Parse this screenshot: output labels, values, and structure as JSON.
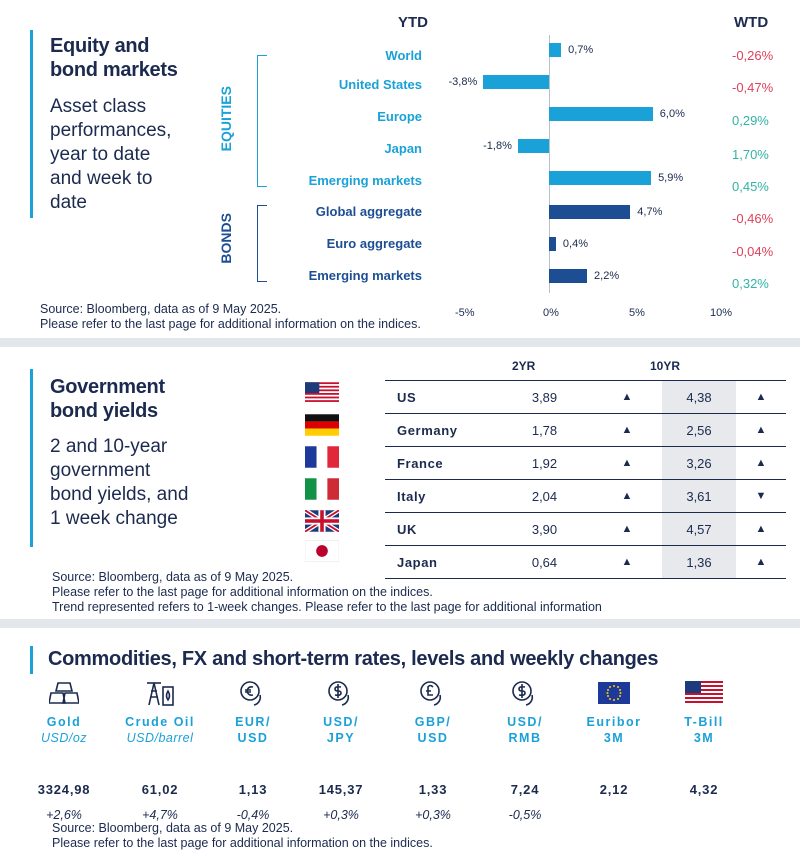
{
  "equity_panel": {
    "title_line1": "Equity and",
    "title_line2": "bond markets",
    "subtitle_lines": [
      "Asset class",
      "performances,",
      "year to date",
      "and week to",
      "date"
    ],
    "header_ytd": "YTD",
    "header_wtd": "WTD",
    "group_equities": "EQUITIES",
    "group_bonds": "BONDS",
    "source_line1": "Source: Bloomberg, data as of 9 May 2025.",
    "source_line2": "Please refer to the last page for additional information on the indices."
  },
  "chart_data": {
    "type": "bar",
    "orientation": "horizontal",
    "categories": [
      "World",
      "United States",
      "Europe",
      "Japan",
      "Emerging  markets",
      "Global aggregate",
      "Euro aggregate",
      "Emerging  markets"
    ],
    "groups": [
      "equities",
      "equities",
      "equities",
      "equities",
      "equities",
      "bonds",
      "bonds",
      "bonds"
    ],
    "values": [
      0.7,
      -3.8,
      6.0,
      -1.8,
      5.9,
      4.7,
      0.4,
      2.2
    ],
    "value_labels": [
      "0,7%",
      "-3,8%",
      "6,0%",
      "-1,8%",
      "5,9%",
      "4,7%",
      "0,4%",
      "2,2%"
    ],
    "wtd": [
      "-0,26%",
      "-0,47%",
      "0,29%",
      "1,70%",
      "0,45%",
      "-0,46%",
      "-0,04%",
      "0,32%"
    ],
    "wtd_values": [
      -0.26,
      -0.47,
      0.29,
      1.7,
      0.45,
      -0.46,
      -0.04,
      0.32
    ],
    "xlim": [
      -5,
      10
    ],
    "xticks": [
      "-5%",
      "0%",
      "5%",
      "10%"
    ],
    "xtick_values": [
      -5,
      0,
      5,
      10
    ],
    "colors": {
      "equities": "#1aa1d8",
      "bonds": "#1d4e94",
      "positive": "#32b3a5",
      "negative": "#e0405a"
    }
  },
  "yields_panel": {
    "title_line1": "Government",
    "title_line2": "bond yields",
    "subtitle_lines": [
      "2 and 10-year",
      "government",
      "bond yields, and",
      "1 week change"
    ],
    "col_2yr": "2YR",
    "col_10yr": "10YR",
    "rows": [
      {
        "country": "US",
        "y2": "3,89",
        "t2": "up",
        "y10": "4,38",
        "t10": "up",
        "flag": "us-flag"
      },
      {
        "country": "Germany",
        "y2": "1,78",
        "t2": "up",
        "y10": "2,56",
        "t10": "up",
        "flag": "germany-flag"
      },
      {
        "country": "France",
        "y2": "1,92",
        "t2": "up",
        "y10": "3,26",
        "t10": "up",
        "flag": "france-flag"
      },
      {
        "country": "Italy",
        "y2": "2,04",
        "t2": "up",
        "y10": "3,61",
        "t10": "down",
        "flag": "italy-flag"
      },
      {
        "country": "UK",
        "y2": "3,90",
        "t2": "up",
        "y10": "4,57",
        "t10": "up",
        "flag": "uk-flag"
      },
      {
        "country": "Japan",
        "y2": "0,64",
        "t2": "up",
        "y10": "1,36",
        "t10": "up",
        "flag": "japan-flag"
      }
    ],
    "source_line1": "Source: Bloomberg, data as of 9 May 2025.",
    "source_line2": "Please refer to the last page for additional information on the indices.",
    "source_line3": "Trend represented refers to 1-week changes. Please refer to the last page for additional information"
  },
  "commodities_panel": {
    "title": "Commodities, FX and short-term rates, levels and weekly changes",
    "items": [
      {
        "name": "Gold",
        "unit": "USD/oz",
        "level": "3324,98",
        "change": "+2,6%",
        "icon": "gold-bars-icon"
      },
      {
        "name": "Crude Oil",
        "unit": "USD/barrel",
        "level": "61,02",
        "change": "+4,7%",
        "icon": "oil-derrick-icon"
      },
      {
        "name": "EUR/",
        "unit": "USD",
        "level": "1,13",
        "change": "-0,4%",
        "icon": "euro-exchange-icon"
      },
      {
        "name": "USD/",
        "unit": "JPY",
        "level": "145,37",
        "change": "+0,3%",
        "icon": "dollar-exchange-icon"
      },
      {
        "name": "GBP/",
        "unit": "USD",
        "level": "1,33",
        "change": "+0,3%",
        "icon": "pound-exchange-icon"
      },
      {
        "name": "USD/",
        "unit": "RMB",
        "level": "7,24",
        "change": "-0,5%",
        "icon": "dollar-exchange-icon"
      },
      {
        "name": "Euribor",
        "unit": "3M",
        "level": "2,12",
        "change": "",
        "icon": "eu-flag-icon"
      },
      {
        "name": "T-Bill",
        "unit": "3M",
        "level": "4,32",
        "change": "",
        "icon": "us-flag-icon"
      }
    ],
    "source_line1": "Source: Bloomberg, data as of 9 May 2025.",
    "source_line2": "Please refer to the last page for additional information on the indices."
  }
}
